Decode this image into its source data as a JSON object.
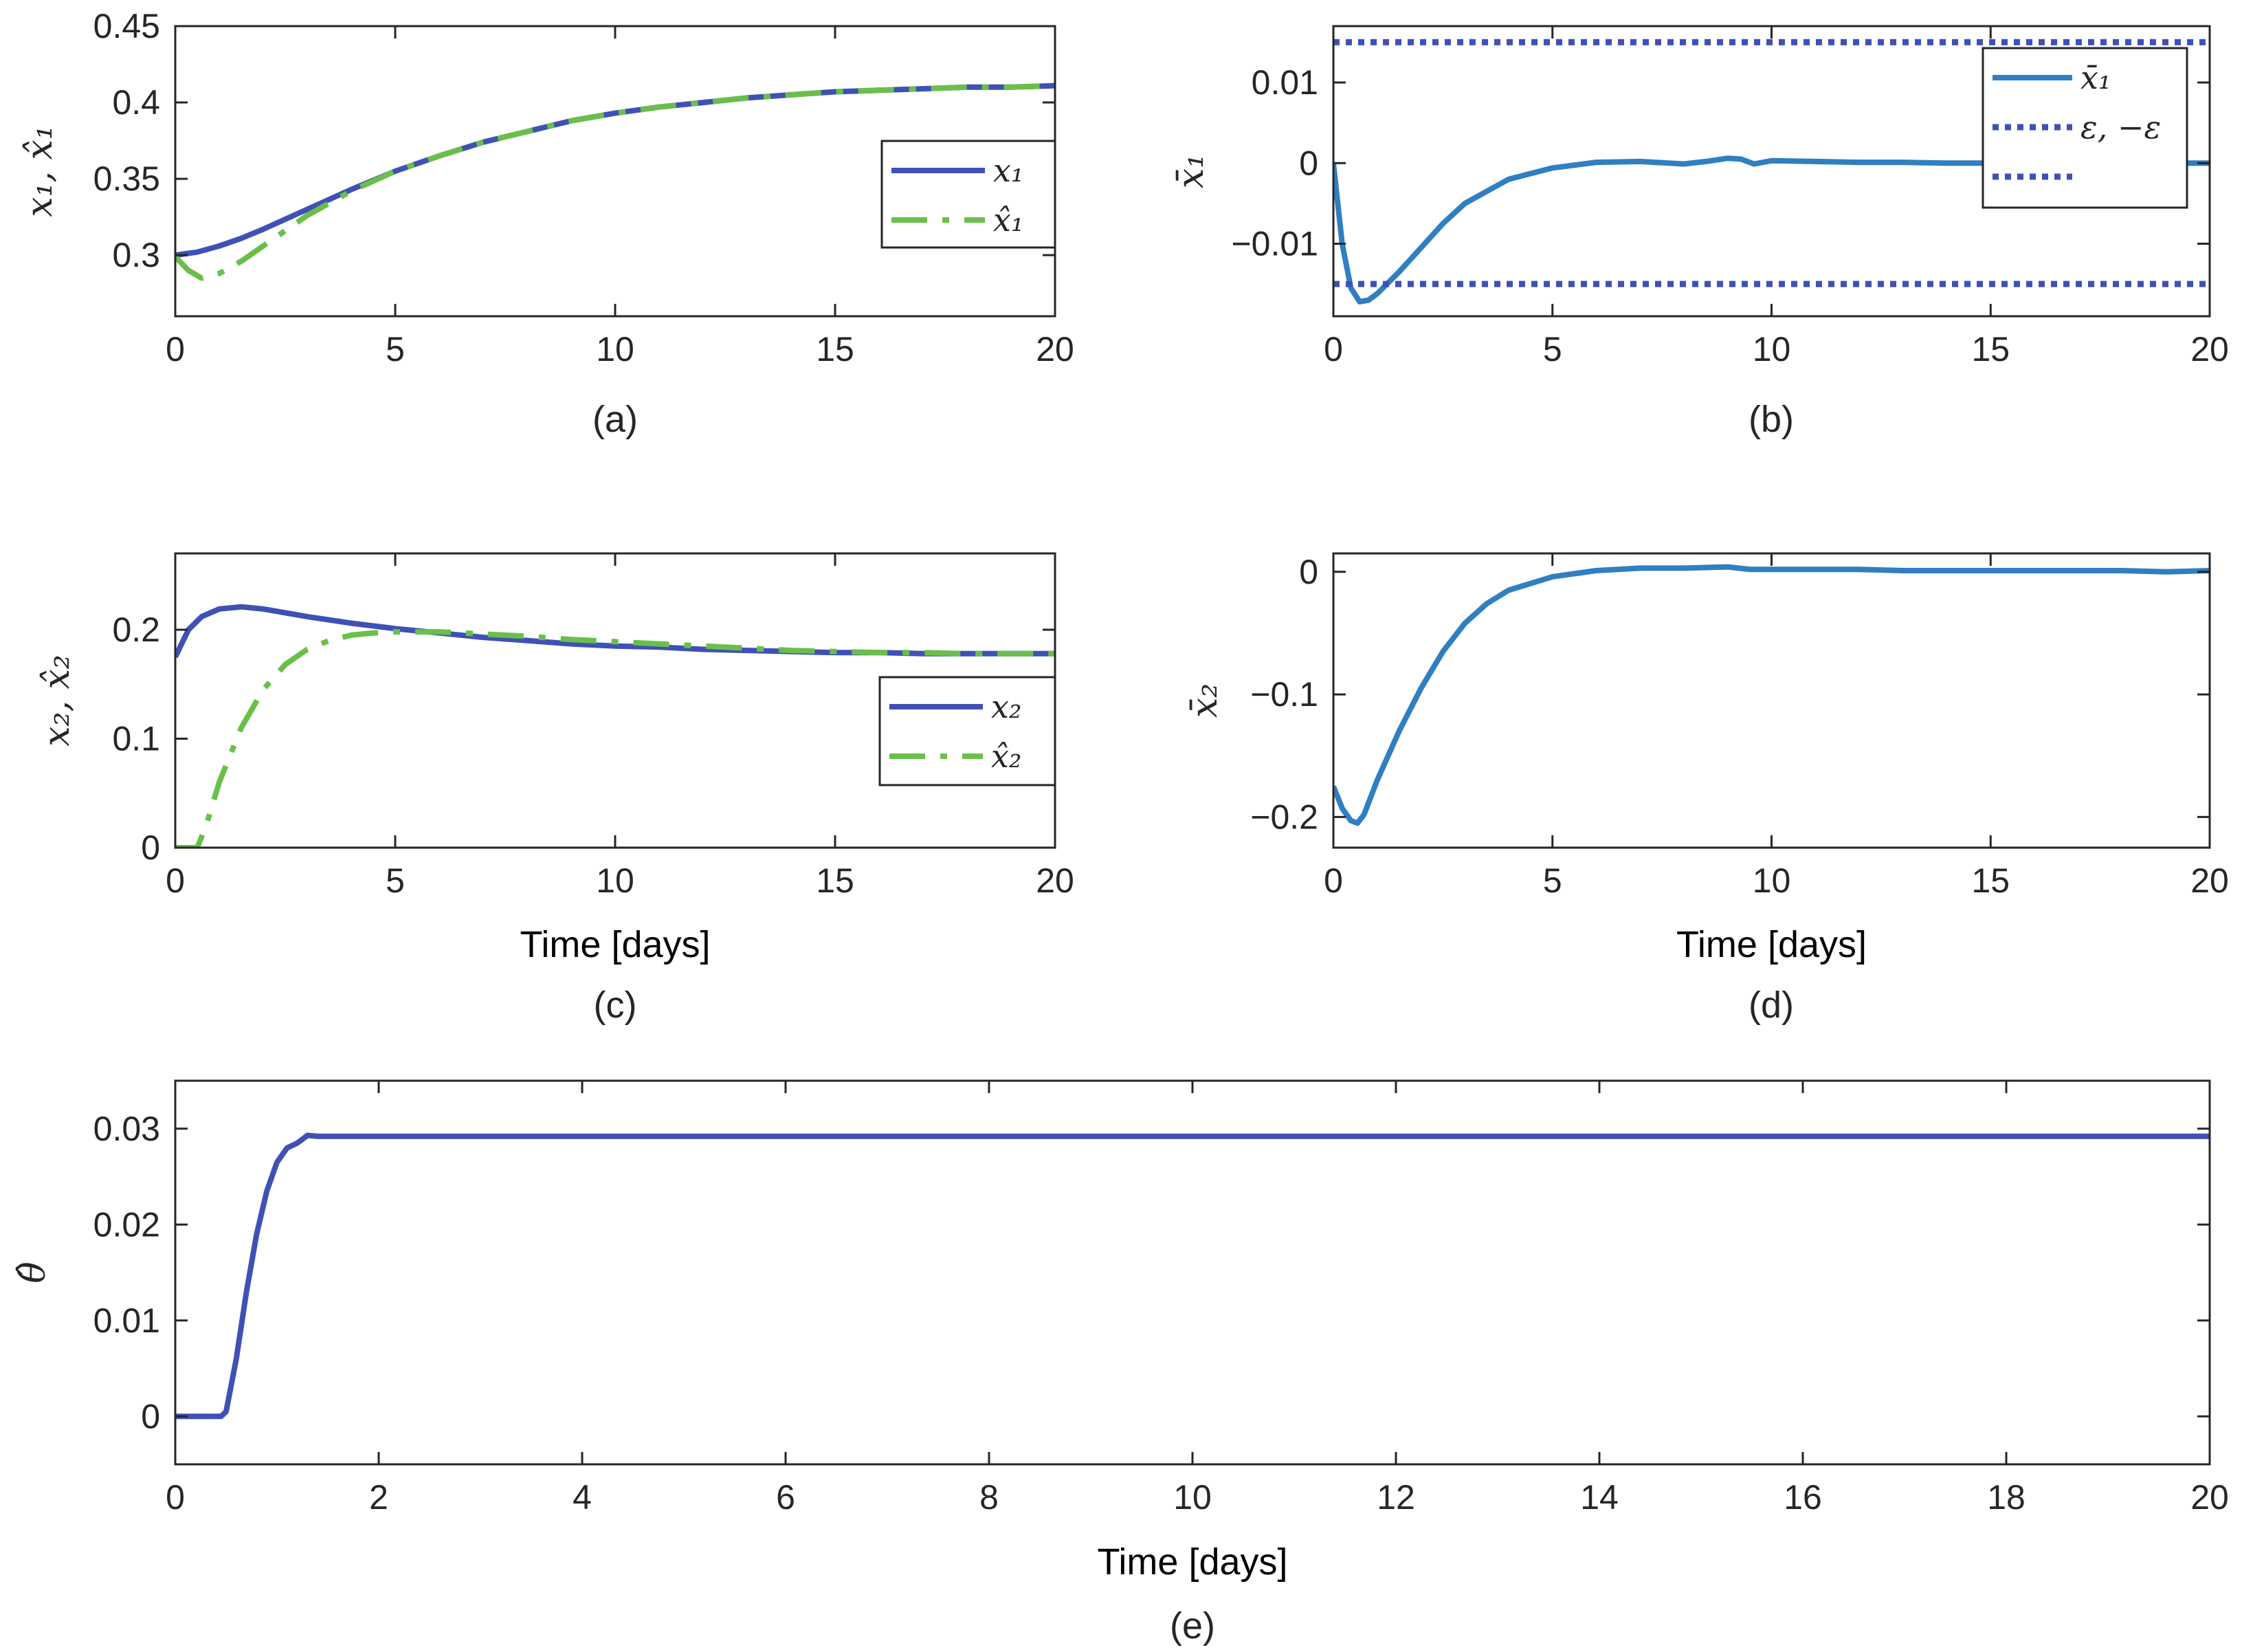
{
  "chart_data": [
    {
      "id": "a",
      "type": "line",
      "caption": "(a)",
      "xlabel": "",
      "ylabel": "x₁, x̂₁",
      "xlim": [
        0,
        20
      ],
      "ylim": [
        0.26,
        0.45
      ],
      "xticks": [
        0,
        5,
        10,
        15,
        20
      ],
      "yticks": [
        0.3,
        0.35,
        0.4,
        0.45
      ],
      "xtick_labels": [
        "0",
        "5",
        "10",
        "15",
        "20"
      ],
      "ytick_labels": [
        "0.3",
        "0.35",
        "0.4",
        "0.45"
      ],
      "legend_position": "right",
      "legend": [
        "x₁",
        "x̂₁"
      ],
      "series": [
        {
          "name": "x₁",
          "style": "solid",
          "color": "#3f51b5",
          "x": [
            0,
            0.5,
            1,
            1.5,
            2,
            3,
            4,
            5,
            6,
            7,
            8,
            9,
            10,
            11,
            12,
            13,
            14,
            15,
            16,
            17,
            18,
            19,
            20
          ],
          "y": [
            0.3,
            0.302,
            0.306,
            0.311,
            0.317,
            0.33,
            0.343,
            0.355,
            0.365,
            0.374,
            0.381,
            0.388,
            0.393,
            0.397,
            0.4,
            0.403,
            0.405,
            0.407,
            0.408,
            0.409,
            0.41,
            0.41,
            0.411
          ]
        },
        {
          "name": "x̂₁",
          "style": "dashdot",
          "color": "#6abf4b",
          "x": [
            0,
            0.3,
            0.6,
            1,
            1.5,
            2,
            3,
            4,
            5,
            6,
            7,
            8,
            9,
            10,
            11,
            12,
            13,
            14,
            15,
            16,
            17,
            18,
            19,
            20
          ],
          "y": [
            0.299,
            0.29,
            0.285,
            0.288,
            0.296,
            0.306,
            0.326,
            0.342,
            0.355,
            0.365,
            0.374,
            0.381,
            0.388,
            0.393,
            0.397,
            0.4,
            0.403,
            0.405,
            0.407,
            0.408,
            0.409,
            0.41,
            0.41,
            0.411
          ]
        }
      ]
    },
    {
      "id": "b",
      "type": "line",
      "caption": "(b)",
      "xlabel": "",
      "ylabel": "x̄₁",
      "xlim": [
        0,
        20
      ],
      "ylim": [
        -0.019,
        0.017
      ],
      "xticks": [
        0,
        5,
        10,
        15,
        20
      ],
      "yticks": [
        -0.01,
        0,
        0.01
      ],
      "xtick_labels": [
        "0",
        "5",
        "10",
        "15",
        "20"
      ],
      "ytick_labels": [
        "−0.01",
        "0",
        "0.01"
      ],
      "legend_position": "top-right",
      "legend": [
        "x̄₁",
        "ε, −ε"
      ],
      "series": [
        {
          "name": "x̄₁",
          "style": "solid",
          "color": "#2f7fc1",
          "x": [
            0,
            0.2,
            0.4,
            0.6,
            0.8,
            1,
            1.5,
            2,
            2.5,
            3,
            4,
            5,
            6,
            7,
            8,
            8.5,
            9,
            9.3,
            9.6,
            10,
            11,
            12,
            13,
            14,
            15,
            16,
            17,
            18,
            19,
            20
          ],
          "y": [
            0,
            -0.01,
            -0.0155,
            -0.0172,
            -0.017,
            -0.0162,
            -0.0135,
            -0.0105,
            -0.0075,
            -0.005,
            -0.002,
            -0.0006,
            0.0001,
            0.0002,
            -0.0001,
            0.0002,
            0.0006,
            0.0005,
            -0.0001,
            0.0003,
            0.0002,
            0.0001,
            0.0001,
            0,
            0,
            0,
            0,
            0,
            0,
            0
          ]
        },
        {
          "name": "ε",
          "style": "dotted",
          "color": "#3f51b5",
          "x": [
            0,
            20
          ],
          "y": [
            0.015,
            0.015
          ]
        },
        {
          "name": "−ε",
          "style": "dotted",
          "color": "#3f51b5",
          "x": [
            0,
            20
          ],
          "y": [
            -0.015,
            -0.015
          ]
        }
      ]
    },
    {
      "id": "c",
      "type": "line",
      "caption": "(c)",
      "xlabel": "Time [days]",
      "ylabel": "x₂, x̂₂",
      "xlim": [
        0,
        20
      ],
      "ylim": [
        0,
        0.27
      ],
      "xticks": [
        0,
        5,
        10,
        15,
        20
      ],
      "yticks": [
        0,
        0.1,
        0.2
      ],
      "xtick_labels": [
        "0",
        "5",
        "10",
        "15",
        "20"
      ],
      "ytick_labels": [
        "0",
        "0.1",
        "0.2"
      ],
      "legend_position": "bottom-right",
      "legend": [
        "x₂",
        "x̂₂"
      ],
      "series": [
        {
          "name": "x₂",
          "style": "solid",
          "color": "#3f51b5",
          "x": [
            0,
            0.3,
            0.6,
            1,
            1.5,
            2,
            3,
            4,
            5,
            6,
            7,
            8,
            9,
            10,
            11,
            12,
            13,
            14,
            15,
            16,
            17,
            18,
            19,
            20
          ],
          "y": [
            0.175,
            0.2,
            0.212,
            0.219,
            0.221,
            0.219,
            0.212,
            0.206,
            0.201,
            0.197,
            0.193,
            0.19,
            0.187,
            0.185,
            0.184,
            0.182,
            0.181,
            0.18,
            0.179,
            0.179,
            0.178,
            0.178,
            0.178,
            0.178
          ]
        },
        {
          "name": "x̂₂",
          "style": "dashdot",
          "color": "#6abf4b",
          "x": [
            0,
            0.3,
            0.5,
            0.7,
            1,
            1.5,
            2,
            2.5,
            3,
            3.5,
            4,
            4.5,
            5,
            5.5,
            6,
            7,
            8,
            9,
            10,
            11,
            12,
            13,
            14,
            15,
            16,
            17,
            18,
            19,
            20
          ],
          "y": [
            0,
            0,
            0,
            0.02,
            0.06,
            0.11,
            0.145,
            0.168,
            0.182,
            0.19,
            0.195,
            0.197,
            0.198,
            0.198,
            0.198,
            0.196,
            0.194,
            0.191,
            0.189,
            0.187,
            0.185,
            0.183,
            0.181,
            0.18,
            0.179,
            0.179,
            0.178,
            0.178,
            0.178
          ]
        }
      ]
    },
    {
      "id": "d",
      "type": "line",
      "caption": "(d)",
      "xlabel": "Time [days]",
      "ylabel": "x̄₂",
      "xlim": [
        0,
        20
      ],
      "ylim": [
        -0.225,
        0.015
      ],
      "xticks": [
        0,
        5,
        10,
        15,
        20
      ],
      "yticks": [
        -0.2,
        -0.1,
        0
      ],
      "xtick_labels": [
        "0",
        "5",
        "10",
        "15",
        "20"
      ],
      "ytick_labels": [
        "−0.2",
        "−0.1",
        "0"
      ],
      "legend_position": "none",
      "legend": [],
      "series": [
        {
          "name": "x̄₂",
          "style": "solid",
          "color": "#2f7fc1",
          "x": [
            0,
            0.2,
            0.4,
            0.55,
            0.7,
            1,
            1.5,
            2,
            2.5,
            3,
            3.5,
            4,
            5,
            6,
            7,
            8,
            9,
            9.5,
            10,
            11,
            12,
            13,
            14,
            15,
            16,
            17,
            18,
            19,
            20
          ],
          "y": [
            -0.175,
            -0.193,
            -0.203,
            -0.205,
            -0.198,
            -0.17,
            -0.13,
            -0.095,
            -0.065,
            -0.042,
            -0.026,
            -0.015,
            -0.004,
            0.001,
            0.003,
            0.003,
            0.004,
            0.002,
            0.002,
            0.002,
            0.002,
            0.001,
            0.001,
            0.001,
            0.001,
            0.001,
            0.001,
            0,
            0.001
          ]
        }
      ]
    },
    {
      "id": "e",
      "type": "line",
      "caption": "(e)",
      "xlabel": "Time [days]",
      "ylabel": "θ̂",
      "xlim": [
        0,
        20
      ],
      "ylim": [
        -0.005,
        0.035
      ],
      "xticks": [
        0,
        2,
        4,
        6,
        8,
        10,
        12,
        14,
        16,
        18,
        20
      ],
      "yticks": [
        0,
        0.01,
        0.02,
        0.03
      ],
      "xtick_labels": [
        "0",
        "2",
        "4",
        "6",
        "8",
        "10",
        "12",
        "14",
        "16",
        "18",
        "20"
      ],
      "ytick_labels": [
        "0",
        "0.01",
        "0.02",
        "0.03"
      ],
      "legend_position": "none",
      "legend": [],
      "series": [
        {
          "name": "θ̂",
          "style": "solid",
          "color": "#3f51b5",
          "x": [
            0,
            0.45,
            0.5,
            0.6,
            0.7,
            0.8,
            0.9,
            1.0,
            1.1,
            1.2,
            1.3,
            1.4,
            20
          ],
          "y": [
            0,
            0,
            0.0005,
            0.006,
            0.013,
            0.019,
            0.0235,
            0.0265,
            0.028,
            0.0285,
            0.0293,
            0.0292,
            0.0292
          ]
        }
      ]
    }
  ]
}
